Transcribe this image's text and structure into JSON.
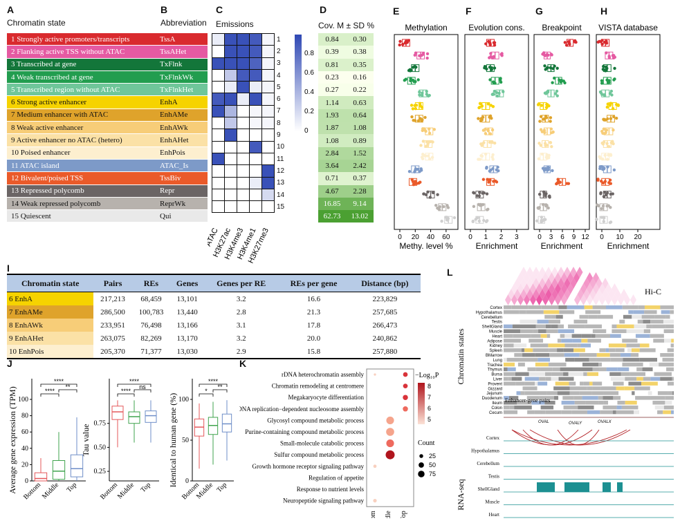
{
  "panels": {
    "A": "A",
    "B": "B",
    "C": "C",
    "D": "D",
    "E": "E",
    "F": "F",
    "G": "G",
    "H": "H",
    "I": "I",
    "J": "J",
    "K": "K",
    "L": "L"
  },
  "headers": {
    "chromatin_state": "Chromatin state",
    "abbreviation": "Abbreviation",
    "emissions": "Emissions",
    "cov": "Cov. M ± SD %",
    "methylation": "Methylation",
    "evolution": "Evolution cons.",
    "breakpoint": "Breakpoint",
    "vista": "VISTA database",
    "methy_level": "Methy. level %",
    "enrichment": "Enrichment",
    "hic": "Hi-C",
    "chromatin_states_vertical": "Chromatin states",
    "enhancer_gene_pairs": "Enhancer-gene pairs",
    "rnaseq": "RNA-seq"
  },
  "states": [
    {
      "name": "1  Strongly active promoters/transcripts",
      "abbr": "TssA",
      "color": "#d92a2e",
      "textcolor": "#ffffff"
    },
    {
      "name": "2  Flanking active TSS without ATAC",
      "abbr": "TssAHet",
      "color": "#e55aa2",
      "textcolor": "#ffffff"
    },
    {
      "name": "3  Transcribed at gene",
      "abbr": "TxFlnk",
      "color": "#13763a",
      "textcolor": "#ffffff"
    },
    {
      "name": "4  Weak transcribed at gene",
      "abbr": "TxFlnkWk",
      "color": "#229d4f",
      "textcolor": "#ffffff"
    },
    {
      "name": "5  Transcribed region without ATAC",
      "abbr": "TxFlnkHet",
      "color": "#6fc69a",
      "textcolor": "#ffffff"
    },
    {
      "name": "6  Strong active enhancer",
      "abbr": "EnhA",
      "color": "#f6d300",
      "textcolor": "#111111"
    },
    {
      "name": "7  Medium enhancer with ATAC",
      "abbr": "EnhAMe",
      "color": "#dfa32b",
      "textcolor": "#111111"
    },
    {
      "name": "8  Weak active enhancer",
      "abbr": "EnhAWk",
      "color": "#f7cd78",
      "textcolor": "#111111"
    },
    {
      "name": "9  Active enhancer no ATAC (hetero)",
      "abbr": "EnhAHet",
      "color": "#fbe1a6",
      "textcolor": "#111111"
    },
    {
      "name": "10  Poised enhancer",
      "abbr": "EnhPois",
      "color": "#fdefcf",
      "textcolor": "#111111"
    },
    {
      "name": "11  ATAC island",
      "abbr": "ATAC_Is",
      "color": "#7d9ac8",
      "textcolor": "#ffffff"
    },
    {
      "name": "12  Bivalent/poised TSS",
      "abbr": "TssBiv",
      "color": "#ea5a2a",
      "textcolor": "#ffffff"
    },
    {
      "name": "13  Repressed polycomb",
      "abbr": "Repr",
      "color": "#6b6565",
      "textcolor": "#ffffff"
    },
    {
      "name": "14  Weak repressed polycomb",
      "abbr": "ReprWk",
      "color": "#b7b2ad",
      "textcolor": "#111111"
    },
    {
      "name": "15  Quiescent",
      "abbr": "Qui",
      "color": "#e9e9e9",
      "textcolor": "#111111"
    }
  ],
  "emissions": {
    "marks": [
      "ATAC",
      "H3K27ac",
      "H3K4me3",
      "H3K4me1",
      "H3K27me3"
    ],
    "row_labels": [
      "1",
      "2",
      "3",
      "4",
      "5",
      "6",
      "7",
      "8",
      "9",
      "10",
      "11",
      "12",
      "13",
      "14",
      "15"
    ],
    "values": [
      [
        0.1,
        0.95,
        0.95,
        0.9,
        0.05
      ],
      [
        0.0,
        0.95,
        0.95,
        0.9,
        0.05
      ],
      [
        0.95,
        0.95,
        0.95,
        0.85,
        0.05
      ],
      [
        0.0,
        0.3,
        0.9,
        0.9,
        0.05
      ],
      [
        0.0,
        0.1,
        0.95,
        0.1,
        0.05
      ],
      [
        0.9,
        0.95,
        0.1,
        0.95,
        0.05
      ],
      [
        0.95,
        0.4,
        0.0,
        0.05,
        0.05
      ],
      [
        0.0,
        0.3,
        0.0,
        0.05,
        0.05
      ],
      [
        0.0,
        0.95,
        0.0,
        0.0,
        0.0
      ],
      [
        0.0,
        0.0,
        0.0,
        0.9,
        0.0
      ],
      [
        0.95,
        0.0,
        0.0,
        0.0,
        0.0
      ],
      [
        0.0,
        0.0,
        0.0,
        0.0,
        0.95
      ],
      [
        0.0,
        0.0,
        0.0,
        0.1,
        0.95
      ],
      [
        0.0,
        0.0,
        0.0,
        0.0,
        0.2
      ],
      [
        0.0,
        0.0,
        0.0,
        0.0,
        0.0
      ]
    ],
    "colorbar_ticks": [
      "0.8",
      "0.6",
      "0.4",
      "0.2",
      "0"
    ]
  },
  "coverage": [
    [
      "0.84",
      "0.30"
    ],
    [
      "0.39",
      "0.38"
    ],
    [
      "0.81",
      "0.35"
    ],
    [
      "0.23",
      "0.16"
    ],
    [
      "0.27",
      "0.22"
    ],
    [
      "1.14",
      "0.63"
    ],
    [
      "1.93",
      "0.64"
    ],
    [
      "1.87",
      "1.08"
    ],
    [
      "1.08",
      "0.89"
    ],
    [
      "2.84",
      "1.52"
    ],
    [
      "3.64",
      "2.42"
    ],
    [
      "0.71",
      "0.37"
    ],
    [
      "4.67",
      "2.28"
    ],
    [
      "16.85",
      "9.14"
    ],
    [
      "62.73",
      "13.02"
    ]
  ],
  "chart_data": [
    {
      "type": "scatter",
      "panel": "E",
      "title": "Methylation",
      "xlabel": "Methy. level %",
      "xticks": [
        "0",
        "20",
        "40",
        "60"
      ],
      "xlim": [
        0,
        70
      ],
      "medians": [
        8,
        27,
        20,
        15,
        30,
        25,
        25,
        38,
        37,
        38,
        20,
        17,
        40,
        55,
        63
      ]
    },
    {
      "type": "scatter",
      "panel": "F",
      "title": "Evolution cons.",
      "xlabel": "Enrichment",
      "xticks": [
        "0",
        "1",
        "2",
        "3"
      ],
      "xlim": [
        0,
        3.5
      ],
      "medians": [
        1.3,
        1.6,
        1.3,
        1.6,
        1.9,
        1.0,
        1.0,
        1.2,
        1.1,
        1.0,
        1.5,
        1.3,
        0.6,
        0.7,
        0.6
      ]
    },
    {
      "type": "scatter",
      "panel": "G",
      "title": "Breakpoint",
      "xlabel": "Enrichment",
      "xticks": [
        "0",
        "3",
        "6",
        "9",
        "12"
      ],
      "xlim": [
        0,
        12
      ],
      "medians": [
        8,
        2,
        3,
        5,
        3,
        1,
        1.5,
        2,
        1.5,
        1,
        2,
        6,
        1,
        1,
        0.5
      ]
    },
    {
      "type": "scatter",
      "panel": "H",
      "title": "VISTA database",
      "xlabel": "Enrichment",
      "xticks": [
        "0",
        "10",
        "20"
      ],
      "xlim": [
        0,
        30
      ],
      "medians": [
        2,
        4,
        3,
        3,
        2,
        6,
        5,
        4,
        3,
        2,
        3,
        2,
        3,
        1,
        1
      ]
    },
    {
      "type": "table",
      "panel": "I",
      "columns": [
        "Chromatin state",
        "Pairs",
        "REs",
        "Genes",
        "Genes per RE",
        "REs per gene",
        "Distance (bp)"
      ],
      "rows": [
        [
          "6 EnhA",
          "217,213",
          "68,459",
          "13,101",
          "3.2",
          "16.6",
          "223,829"
        ],
        [
          "7 EnhAMe",
          "286,500",
          "100,783",
          "13,440",
          "2.8",
          "21.3",
          "257,685"
        ],
        [
          "8 EnhAWk",
          "233,951",
          "76,498",
          "13,166",
          "3.1",
          "17.8",
          "266,473"
        ],
        [
          "9 EnhAHet",
          "263,075",
          "82,269",
          "13,170",
          "3.2",
          "20.0",
          "240,862"
        ],
        [
          "10 EnhPois",
          "205,370",
          "71,377",
          "13,030",
          "2.9",
          "15.8",
          "257,880"
        ]
      ],
      "row_colors": [
        "#f6d300",
        "#dfa32b",
        "#f7cd78",
        "#fbe1a6",
        "#fdefcf"
      ]
    },
    {
      "type": "box",
      "panel": "J1",
      "ylabel": "Average gene expression (TPM)",
      "categories": [
        "Bottom",
        "Middle",
        "Top"
      ],
      "ylim": [
        0,
        100
      ],
      "yticks": [
        "0",
        "20",
        "40",
        "60",
        "80",
        "100"
      ],
      "boxes": [
        {
          "q1": 0,
          "med": 3,
          "q3": 10,
          "lo": 0,
          "hi": 28
        },
        {
          "q1": 2,
          "med": 12,
          "q3": 25,
          "lo": 0,
          "hi": 60
        },
        {
          "q1": 5,
          "med": 15,
          "q3": 32,
          "lo": 0,
          "hi": 78
        }
      ],
      "signif": [
        "****",
        "****",
        "**"
      ]
    },
    {
      "type": "box",
      "panel": "J2",
      "ylabel": "Tau value",
      "categories": [
        "Bottom",
        "Middle",
        "Top"
      ],
      "ylim": [
        0.15,
        1.0
      ],
      "yticks": [
        "0.25",
        "0.50",
        "0.75"
      ],
      "boxes": [
        {
          "q1": 0.79,
          "med": 0.87,
          "q3": 0.93,
          "lo": 0.5,
          "hi": 0.99
        },
        {
          "q1": 0.75,
          "med": 0.82,
          "q3": 0.87,
          "lo": 0.55,
          "hi": 0.99
        },
        {
          "q1": 0.76,
          "med": 0.83,
          "q3": 0.88,
          "lo": 0.55,
          "hi": 0.99
        }
      ],
      "signif": [
        "****",
        "****",
        "ns"
      ]
    },
    {
      "type": "box",
      "panel": "J3",
      "ylabel": "Identical to human gene (%)",
      "categories": [
        "Bottom",
        "Middle",
        "Top"
      ],
      "ylim": [
        0,
        100
      ],
      "yticks": [
        "0",
        "50",
        "100"
      ],
      "boxes": [
        {
          "q1": 55,
          "med": 66,
          "q3": 76,
          "lo": 15,
          "hi": 95
        },
        {
          "q1": 57,
          "med": 68,
          "q3": 78,
          "lo": 20,
          "hi": 97
        },
        {
          "q1": 60,
          "med": 70,
          "q3": 82,
          "lo": 25,
          "hi": 99
        }
      ],
      "signif": [
        "****",
        "*",
        "**"
      ]
    },
    {
      "type": "scatter",
      "panel": "K",
      "categories_x": [
        "Bottom",
        "Middle",
        "Top"
      ],
      "terms": [
        "rDNA heterochromatin assembly",
        "Chromatin remodeling at centromere",
        "Megakaryocyte differentiation",
        "DNA replication−dependent nucleosome assembly",
        "Glycosyl compound metabolic process",
        "Purine-containing compound metabolic process",
        "Small-molecule catabolic process",
        "Sulfur compound metabolic process",
        "Growth hormone receptor signaling pathway",
        "Regulation of appetite",
        "Response to nutrient levels",
        "Neuropeptide signaling pathway"
      ],
      "points": [
        {
          "term": 0,
          "x": 2,
          "logp": 7.5,
          "count": 20
        },
        {
          "term": 1,
          "x": 2,
          "logp": 7.5,
          "count": 20
        },
        {
          "term": 2,
          "x": 2,
          "logp": 7.5,
          "count": 25
        },
        {
          "term": 3,
          "x": 2,
          "logp": 7.0,
          "count": 25
        },
        {
          "term": 0,
          "x": 0,
          "logp": 4.5,
          "count": 5
        },
        {
          "term": 4,
          "x": 1,
          "logp": 5.5,
          "count": 55
        },
        {
          "term": 5,
          "x": 1,
          "logp": 5.5,
          "count": 60
        },
        {
          "term": 6,
          "x": 1,
          "logp": 6.5,
          "count": 55
        },
        {
          "term": 7,
          "x": 1,
          "logp": 8.5,
          "count": 75
        },
        {
          "term": 8,
          "x": 0,
          "logp": 4.5,
          "count": 10
        },
        {
          "term": 11,
          "x": 0,
          "logp": 5.0,
          "count": 12
        }
      ],
      "legend_title": "−Log₁₀P",
      "legend_ticks": [
        "8",
        "7",
        "6",
        "5"
      ],
      "count_title": "Count",
      "count_ticks": [
        "25",
        "50",
        "75"
      ]
    }
  ],
  "hic": {
    "tissues": [
      "Cortex",
      "Hypothalamus",
      "Cerebellum",
      "Testis",
      "ShellGland",
      "Muscle",
      "Heart",
      "Adipose",
      "Kidney",
      "Spleen",
      "BMarrow",
      "Lung",
      "Trachea",
      "Thymus",
      "Bursa",
      "Liver",
      "Provent",
      "Gizzard",
      "Jejunum",
      "Duodenum",
      "Ileum",
      "Colon",
      "Cecum"
    ],
    "genes": [
      "OVAL",
      "OVALY",
      "OVALX"
    ],
    "rnaseq_tissues": [
      "Cortex",
      "Hypothalamus",
      "Cerebellum",
      "Testis",
      "ShellGland",
      "Muscle",
      "Heart"
    ]
  }
}
